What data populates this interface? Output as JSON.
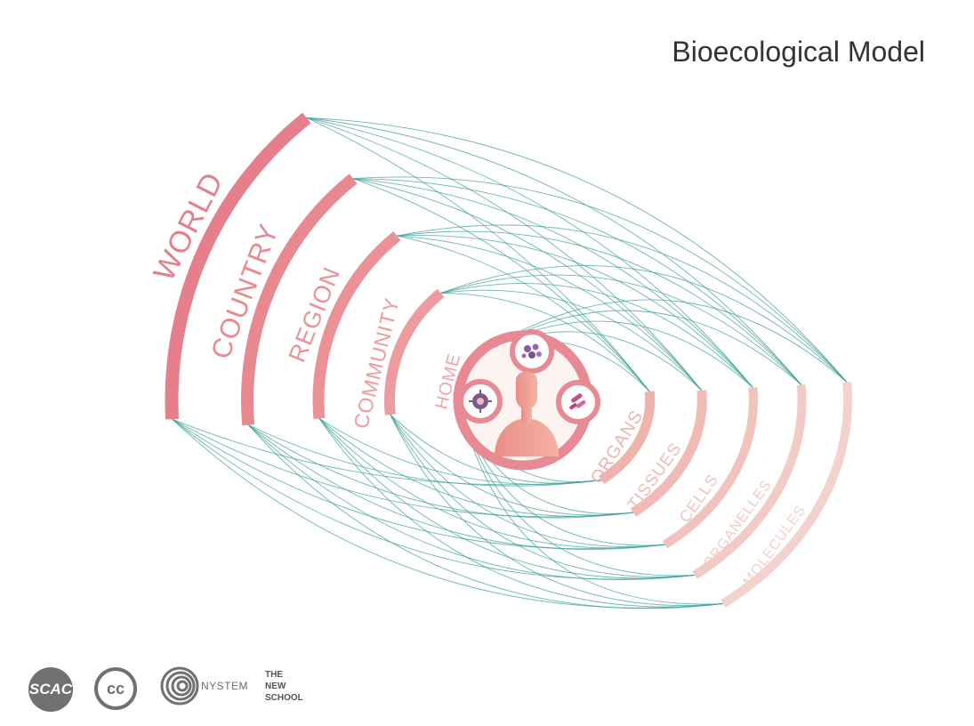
{
  "title": "Bioecological Model",
  "colors": {
    "connector": "#3a9e96",
    "ring_dark": "#e57f8c",
    "ring_light": "#f4cfc8",
    "core": "#e88a93",
    "person": "#ee9f93"
  },
  "outer_rings": [
    {
      "label": "WORLD"
    },
    {
      "label": "COUNTRY"
    },
    {
      "label": "REGION"
    },
    {
      "label": "COMMUNITY"
    },
    {
      "label": "HOME"
    }
  ],
  "inner_rings": [
    {
      "label": "ORGANS"
    },
    {
      "label": "TISSUES"
    },
    {
      "label": "CELLS"
    },
    {
      "label": "ORGANELLES"
    },
    {
      "label": "MOLECULES"
    }
  ],
  "center": {
    "icons": [
      "person-icon",
      "microbe-cluster-icon",
      "bacteria-icon",
      "virus-icon"
    ]
  },
  "logos": {
    "scac": "SCAC",
    "cc": "cc",
    "nystem": "NYSTEM",
    "new_school": [
      "THE",
      "NEW",
      "SCHOOL"
    ]
  }
}
